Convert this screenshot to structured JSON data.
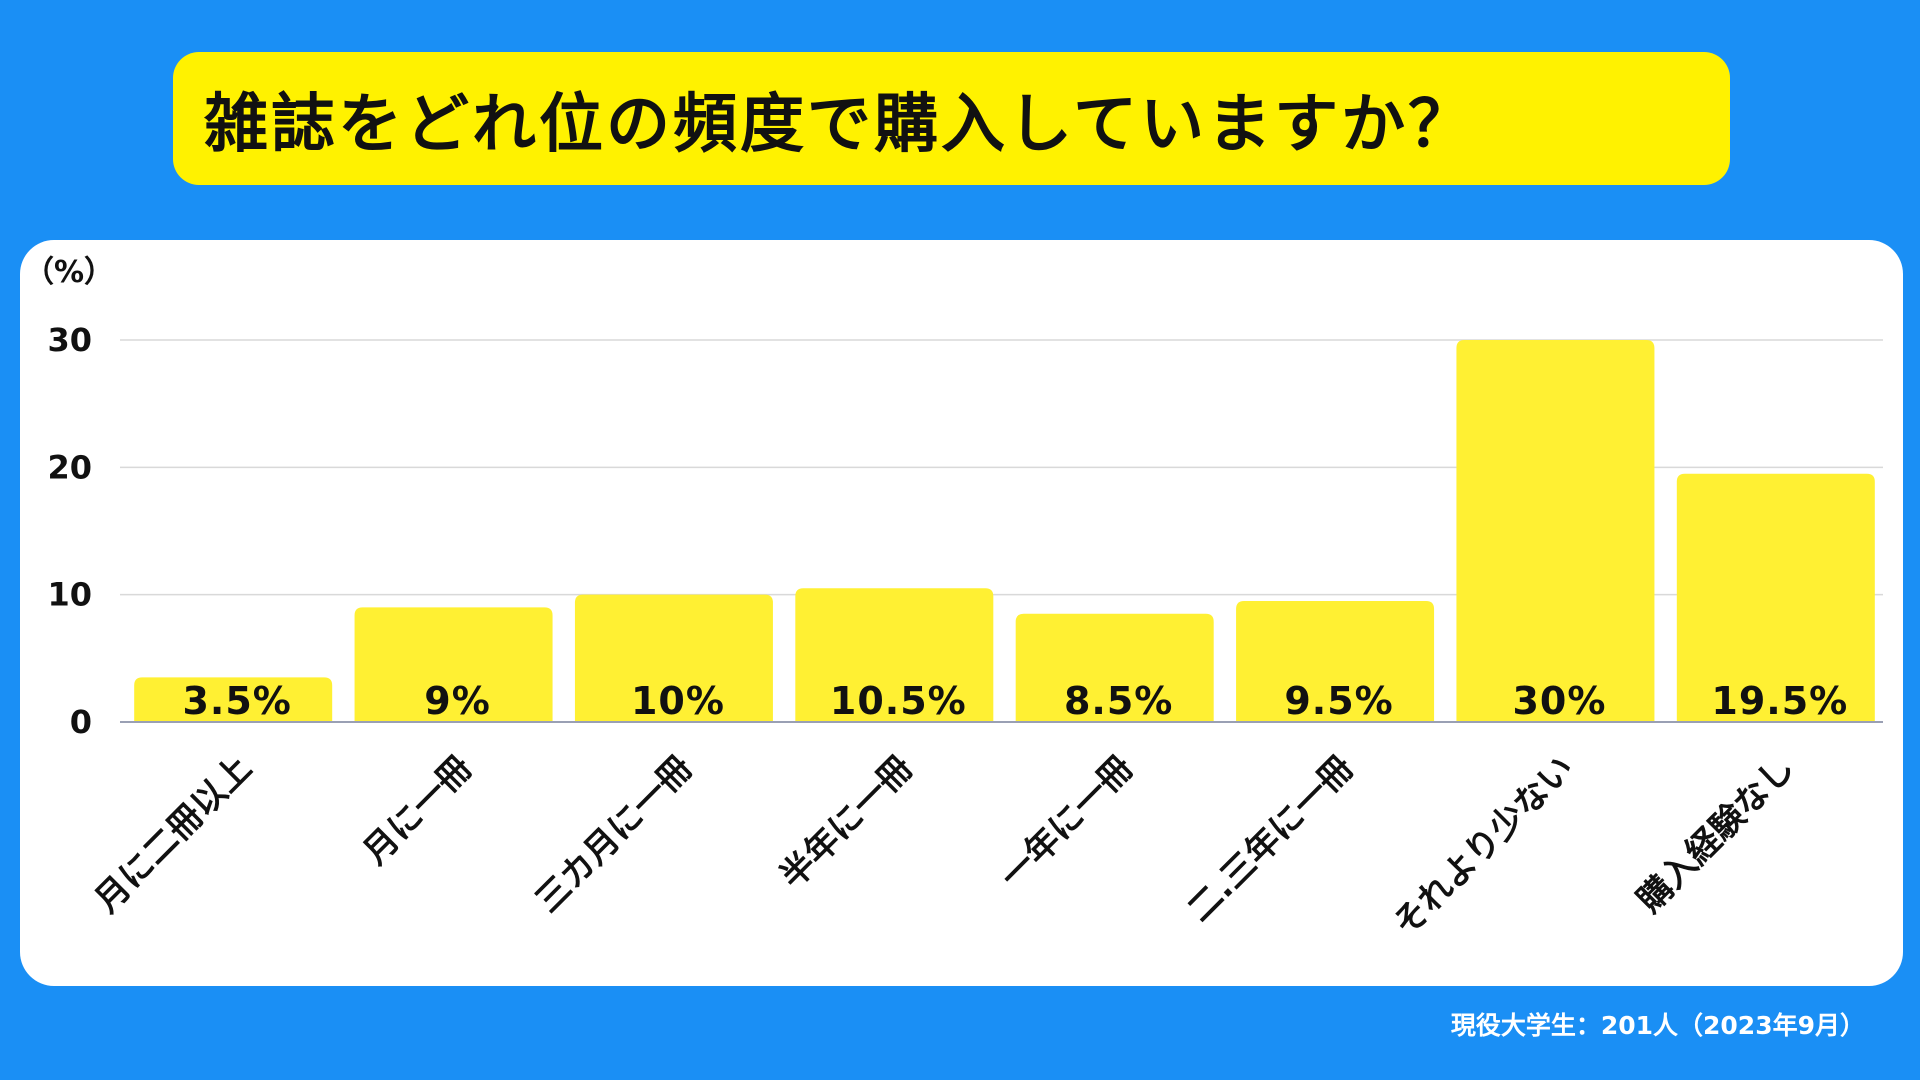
{
  "title": "雑誌をどれ位の頻度で購入していますか？",
  "footnote": "現役大学生：201人（2023年9月）",
  "colors": {
    "background": "#1a8ff5",
    "title_box": "#fff200",
    "panel": "#ffffff",
    "bar": "#fff033",
    "grid": "#d9d9d9",
    "text": "#111111"
  },
  "chart_data": {
    "type": "bar",
    "y_unit_label": "（%）",
    "ylim": [
      0,
      30
    ],
    "yticks": [
      0,
      10,
      20,
      30
    ],
    "grid": true,
    "categories": [
      "月に二冊以上",
      "月に一冊",
      "三カ月に一冊",
      "半年に一冊",
      "一年に一冊",
      "二.三年に一冊",
      "それより少ない",
      "購入経験なし"
    ],
    "values": [
      3.5,
      9,
      10,
      10.5,
      8.5,
      9.5,
      30,
      19.5
    ],
    "data_labels": [
      "3.5%",
      "9%",
      "10%",
      "10.5%",
      "8.5%",
      "9.5%",
      "30%",
      "19.5%"
    ]
  }
}
